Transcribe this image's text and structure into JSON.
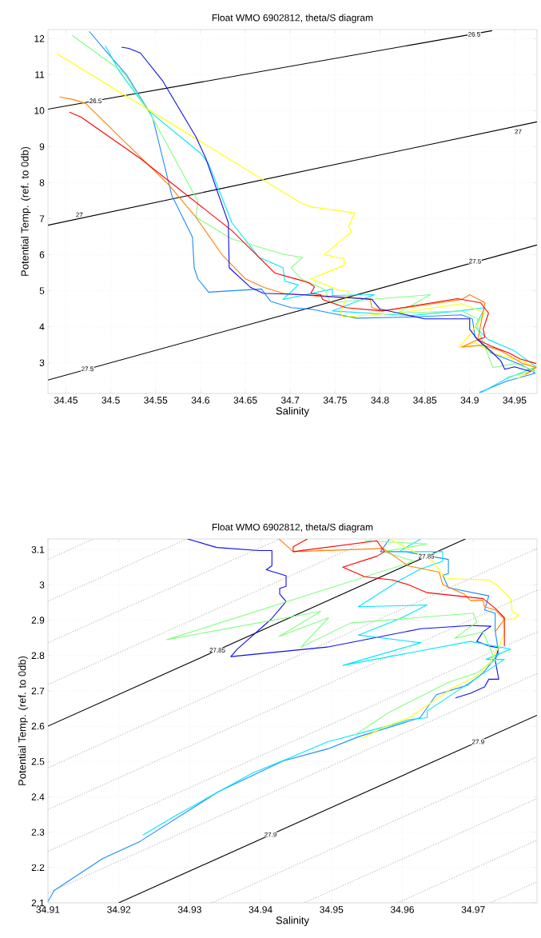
{
  "chart_data": [
    {
      "type": "line",
      "title": "Float WMO 6902812, theta/S diagram",
      "xlabel": "Salinity",
      "ylabel": "Potential Temp. (ref. to 0db)",
      "xlim": [
        34.43,
        34.975
      ],
      "ylim": [
        2.15,
        12.25
      ],
      "xticks": [
        34.45,
        34.5,
        34.55,
        34.6,
        34.65,
        34.7,
        34.75,
        34.8,
        34.85,
        34.9,
        34.95
      ],
      "yticks": [
        3,
        4,
        5,
        6,
        7,
        8,
        9,
        10,
        11,
        12
      ],
      "grid": true,
      "marker": "none",
      "line_style": "solid",
      "series": [
        {
          "color": "#000000",
          "x": [
            34.43,
            34.925
          ],
          "values": [
            10.04,
            12.22
          ]
        },
        {
          "color": "#000000",
          "x": [
            34.43,
            34.975
          ],
          "values": [
            6.82,
            9.69
          ]
        },
        {
          "color": "#000000",
          "x": [
            34.43,
            34.975
          ],
          "values": [
            2.52,
            6.27
          ]
        },
        {
          "color": "#1a8cff",
          "x": [
            34.476,
            34.494,
            34.518,
            34.542,
            34.547,
            34.568,
            34.591,
            34.593,
            34.597,
            34.609,
            34.668,
            34.678,
            34.701,
            34.723,
            34.745,
            34.774,
            34.833,
            34.891,
            34.903,
            34.906,
            34.924,
            34.959,
            34.973,
            34.941,
            34.911
          ],
          "values": [
            12.2,
            11.67,
            10.98,
            10.0,
            9.78,
            7.65,
            6.49,
            5.64,
            5.33,
            4.96,
            5.05,
            4.71,
            4.53,
            4.49,
            4.38,
            4.24,
            4.27,
            4.33,
            4.22,
            3.71,
            3.27,
            2.93,
            2.71,
            2.49,
            2.18
          ]
        },
        {
          "color": "#00e6ff",
          "x": [
            34.494,
            34.509,
            34.542,
            34.6,
            34.609,
            34.635,
            34.665,
            34.692,
            34.694,
            34.709,
            34.692,
            34.747,
            34.747,
            34.794,
            34.747,
            34.833,
            34.888,
            34.917,
            34.906,
            34.921,
            34.95,
            34.974,
            34.941,
            34.913
          ],
          "values": [
            11.8,
            11.11,
            10.0,
            8.82,
            8.53,
            6.89,
            5.93,
            5.64,
            5.27,
            5.16,
            4.76,
            5.05,
            4.87,
            4.89,
            4.44,
            4.31,
            4.44,
            4.53,
            4.0,
            3.64,
            3.33,
            2.89,
            2.56,
            2.18
          ]
        },
        {
          "color": "#80ff80",
          "x": [
            34.457,
            34.515,
            34.547,
            34.597,
            34.595,
            34.635,
            34.694,
            34.714,
            34.701,
            34.712,
            34.738,
            34.745,
            34.856,
            34.82,
            34.891,
            34.909,
            34.909,
            34.926,
            34.95,
            34.973,
            34.941
          ],
          "values": [
            12.09,
            11.04,
            9.78,
            7.49,
            7.04,
            6.44,
            6.0,
            5.93,
            5.64,
            5.33,
            5.04,
            4.67,
            4.89,
            4.38,
            4.44,
            4.22,
            3.93,
            2.87,
            2.98,
            2.78,
            2.6
          ]
        },
        {
          "color": "#ffff00",
          "x": [
            34.44,
            34.712,
            34.723,
            34.772,
            34.765,
            34.768,
            34.738,
            34.76,
            34.76,
            34.723,
            34.756,
            34.765,
            34.756,
            34.759,
            34.818,
            34.891,
            34.917,
            34.9,
            34.888,
            34.906,
            34.926,
            34.959,
            34.974,
            34.953
          ],
          "values": [
            11.58,
            7.44,
            7.33,
            7.16,
            6.78,
            6.64,
            6.0,
            5.89,
            5.71,
            5.33,
            5.0,
            4.98,
            4.38,
            4.27,
            4.38,
            4.64,
            4.38,
            3.78,
            3.42,
            3.56,
            3.27,
            3.04,
            2.87,
            2.56
          ]
        },
        {
          "color": "#ff8000",
          "x": [
            34.443,
            34.458,
            34.472,
            34.565,
            34.595,
            34.624,
            34.65,
            34.671,
            34.692,
            34.745,
            34.789,
            34.791,
            34.803,
            34.891,
            34.9,
            34.917,
            34.909,
            34.891,
            34.915,
            34.935,
            34.959,
            34.974,
            34.962
          ],
          "values": [
            10.38,
            10.31,
            10.2,
            7.93,
            7.04,
            6.0,
            5.33,
            5.09,
            4.93,
            4.82,
            4.78,
            4.53,
            4.44,
            4.76,
            4.89,
            4.67,
            3.64,
            3.44,
            3.49,
            3.33,
            2.98,
            2.87,
            2.67
          ]
        },
        {
          "color": "#ff0000",
          "x": [
            34.454,
            34.467,
            34.533,
            34.635,
            34.665,
            34.683,
            34.709,
            34.721,
            34.727,
            34.723,
            34.734,
            34.736,
            34.762,
            34.803,
            34.886,
            34.912,
            34.921,
            34.915,
            34.917,
            34.909,
            34.926,
            34.944,
            34.956,
            34.974
          ],
          "values": [
            9.96,
            9.82,
            8.67,
            6.67,
            5.93,
            5.49,
            5.31,
            5.22,
            5.11,
            4.93,
            4.89,
            4.76,
            4.53,
            4.44,
            4.78,
            4.67,
            4.38,
            3.93,
            3.71,
            3.64,
            3.44,
            3.27,
            3.11,
            2.98
          ]
        },
        {
          "color": "#0f0fe8",
          "x": [
            34.512,
            34.52,
            34.533,
            34.558,
            34.595,
            34.606,
            34.631,
            34.632,
            34.656,
            34.67,
            34.715,
            34.759,
            34.791,
            34.8,
            34.85,
            34.9,
            34.9,
            34.909,
            34.926,
            34.935,
            34.939,
            34.95,
            34.968
          ],
          "values": [
            11.76,
            11.73,
            11.6,
            10.82,
            9.27,
            8.67,
            6.89,
            5.64,
            5.09,
            4.93,
            4.89,
            4.82,
            4.76,
            4.49,
            4.22,
            4.22,
            3.93,
            3.64,
            3.27,
            3.04,
            2.82,
            2.89,
            2.76
          ]
        }
      ],
      "annotations": [
        {
          "text": "26.5",
          "x": 34.483,
          "y": 10.27
        },
        {
          "text": "26.5",
          "x": 34.905,
          "y": 12.12
        },
        {
          "text": "27",
          "x": 34.465,
          "y": 7.11
        },
        {
          "text": "27",
          "x": 34.954,
          "y": 9.42
        },
        {
          "text": "27.5",
          "x": 34.474,
          "y": 2.83
        },
        {
          "text": "27.5",
          "x": 34.906,
          "y": 5.82
        }
      ]
    },
    {
      "type": "line",
      "title": "Float WMO 6902812, theta/S diagram",
      "xlabel": "Salinity",
      "ylabel": "Potential Temp. (ref. to 0db)",
      "xlim": [
        34.91,
        34.979
      ],
      "ylim": [
        2.1,
        3.13
      ],
      "xticks": [
        34.91,
        34.92,
        34.93,
        34.94,
        34.95,
        34.96,
        34.97
      ],
      "yticks": [
        2.1,
        2.2,
        2.3,
        2.4,
        2.5,
        2.6,
        2.7,
        2.8,
        2.9,
        3,
        3.1
      ],
      "grid": true,
      "marker": "none",
      "line_style": "solid",
      "series": [
        {
          "color": "#b0b0b0",
          "line_style": "dotted",
          "x": [
            34.91,
            34.9164
          ],
          "values": [
            3.072,
            3.13
          ]
        },
        {
          "color": "#b0b0b0",
          "line_style": "dotted",
          "x": [
            34.91,
            34.9296
          ],
          "values": [
            2.954,
            3.13
          ]
        },
        {
          "color": "#b0b0b0",
          "line_style": "dotted",
          "x": [
            34.91,
            34.9427
          ],
          "values": [
            2.836,
            3.13
          ]
        },
        {
          "color": "#b0b0b0",
          "line_style": "dotted",
          "x": [
            34.91,
            34.9558
          ],
          "values": [
            2.718,
            3.13
          ]
        },
        {
          "color": "#000000",
          "x": [
            34.91,
            34.9689
          ],
          "values": [
            2.6,
            3.13
          ]
        },
        {
          "color": "#b0b0b0",
          "line_style": "dotted",
          "x": [
            34.91,
            34.979
          ],
          "values": [
            2.482,
            3.103
          ]
        },
        {
          "color": "#b0b0b0",
          "line_style": "dotted",
          "x": [
            34.91,
            34.979
          ],
          "values": [
            2.364,
            2.985
          ]
        },
        {
          "color": "#b0b0b0",
          "line_style": "dotted",
          "x": [
            34.91,
            34.979
          ],
          "values": [
            2.246,
            2.867
          ]
        },
        {
          "color": "#b0b0b0",
          "line_style": "dotted",
          "x": [
            34.91,
            34.979
          ],
          "values": [
            2.128,
            2.749
          ]
        },
        {
          "color": "#000000",
          "x": [
            34.92,
            34.979
          ],
          "values": [
            2.1,
            2.631
          ]
        },
        {
          "color": "#b0b0b0",
          "line_style": "dotted",
          "x": [
            34.9331,
            34.979
          ],
          "values": [
            2.1,
            2.513
          ]
        },
        {
          "color": "#b0b0b0",
          "line_style": "dotted",
          "x": [
            34.9462,
            34.979
          ],
          "values": [
            2.1,
            2.395
          ]
        },
        {
          "color": "#b0b0b0",
          "line_style": "dotted",
          "x": [
            34.9593,
            34.979
          ],
          "values": [
            2.1,
            2.277
          ]
        },
        {
          "color": "#b0b0b0",
          "line_style": "dotted",
          "x": [
            34.9724,
            34.979
          ],
          "values": [
            2.1,
            2.159
          ]
        },
        {
          "color": "#0f0fe8",
          "x": [
            34.9297,
            34.9338,
            34.9398,
            34.9416,
            34.9416,
            34.9408,
            34.9426,
            34.9436,
            34.9436,
            34.9427,
            34.9427,
            34.9436,
            34.9415,
            34.9367,
            34.9358,
            34.9494,
            34.9626,
            34.9696,
            34.9725,
            34.9714,
            34.9705,
            34.9722,
            34.9736,
            34.9731,
            34.9736,
            34.9722,
            34.9716,
            34.9696,
            34.9675
          ],
          "values": [
            3.13,
            3.106,
            3.097,
            3.097,
            3.054,
            3.043,
            3.032,
            3.026,
            2.996,
            2.99,
            2.974,
            2.953,
            2.903,
            2.818,
            2.797,
            2.824,
            2.876,
            2.885,
            2.883,
            2.867,
            2.84,
            2.827,
            2.822,
            2.787,
            2.733,
            2.733,
            2.711,
            2.693,
            2.68
          ]
        },
        {
          "color": "#1a8cff",
          "x": [
            34.9582,
            34.9569,
            34.9604,
            34.9665,
            34.9665,
            34.9657,
            34.9665,
            34.9722,
            34.9716,
            34.9731,
            34.9731,
            34.9736,
            34.9714,
            34.9692,
            34.9648,
            34.9625,
            34.9538,
            34.9495,
            34.9432,
            34.934,
            34.923,
            34.9177,
            34.9109,
            34.91
          ],
          "values": [
            3.13,
            3.094,
            3.094,
            3.072,
            3.032,
            3.027,
            2.992,
            2.969,
            2.929,
            2.92,
            2.871,
            2.805,
            2.751,
            2.716,
            2.689,
            2.624,
            2.57,
            2.536,
            2.502,
            2.414,
            2.274,
            2.225,
            2.135,
            2.104
          ]
        },
        {
          "color": "#00e6ff",
          "x": [
            34.9626,
            34.9595,
            34.9657,
            34.9657,
            34.9626,
            34.9597,
            34.9538,
            34.9635,
            34.9595,
            34.9538,
            34.9626,
            34.9516,
            34.9696,
            34.9753,
            34.9718,
            34.9744,
            34.9635,
            34.9635,
            34.961,
            34.9586,
            34.9495,
            34.9437,
            34.9389,
            34.9345,
            34.9283,
            34.9234
          ],
          "values": [
            3.13,
            3.094,
            3.094,
            3.067,
            3.045,
            3.014,
            2.938,
            2.943,
            2.903,
            2.858,
            2.836,
            2.772,
            2.84,
            2.818,
            2.789,
            2.789,
            2.643,
            2.624,
            2.619,
            2.604,
            2.556,
            2.507,
            2.468,
            2.419,
            2.35,
            2.292
          ]
        },
        {
          "color": "#80ff80",
          "x": [
            34.9547,
            34.9635,
            34.9573,
            34.9617,
            34.9268,
            34.9485,
            34.9426,
            34.9496,
            34.9457,
            34.9527,
            34.97,
            34.9705,
            34.9674,
            34.9714,
            34.9731,
            34.9705,
            34.9665,
            34.9581,
            34.9562,
            34.9533
          ],
          "values": [
            3.125,
            3.116,
            3.094,
            3.067,
            2.845,
            2.925,
            2.854,
            2.907,
            2.824,
            2.892,
            2.92,
            2.894,
            2.849,
            2.867,
            2.787,
            2.751,
            2.724,
            2.639,
            2.614,
            2.575
          ]
        },
        {
          "color": "#ffff00",
          "x": [
            34.9582,
            34.9643,
            34.9661,
            34.9722,
            34.9736,
            34.9753,
            34.9755,
            34.9764,
            34.9758,
            34.9742,
            34.9744,
            34.9736,
            34.9722,
            34.9705,
            34.967,
            34.961,
            34.9572,
            34.9543
          ],
          "values": [
            3.13,
            3.067,
            3.018,
            3.014,
            2.996,
            2.961,
            2.925,
            2.916,
            2.903,
            2.903,
            2.867,
            2.822,
            2.778,
            2.742,
            2.707,
            2.624,
            2.595,
            2.565
          ]
        },
        {
          "color": "#ff8000",
          "x": [
            34.9426,
            34.9446,
            34.9573,
            34.9586,
            34.9608,
            34.9652,
            34.9657,
            34.9687,
            34.9696,
            34.9714,
            34.9716,
            34.9731,
            34.9744,
            34.9731
          ],
          "values": [
            3.13,
            3.094,
            3.103,
            3.085,
            3.054,
            3.036,
            3.001,
            2.974,
            2.956,
            2.956,
            2.938,
            2.929,
            2.903,
            2.867
          ]
        },
        {
          "color": "#ff0000",
          "x": [
            34.9466,
            34.9446,
            34.9446,
            34.9564,
            34.9575,
            34.9564,
            34.9516,
            34.9547,
            34.9586,
            34.9608,
            34.9635,
            34.9714,
            34.9731,
            34.9744,
            34.9744
          ],
          "values": [
            3.13,
            3.108,
            3.094,
            3.125,
            3.094,
            3.081,
            3.05,
            3.023,
            3.014,
            3.001,
            2.978,
            2.961,
            2.934,
            2.907,
            2.827
          ]
        }
      ],
      "annotations": [
        {
          "text": "27.85",
          "x": 34.9339,
          "y": 2.815
        },
        {
          "text": "27.85",
          "x": 34.9634,
          "y": 3.081
        },
        {
          "text": "27.9",
          "x": 34.9414,
          "y": 2.293
        },
        {
          "text": "27.9",
          "x": 34.9707,
          "y": 2.556
        }
      ]
    }
  ]
}
